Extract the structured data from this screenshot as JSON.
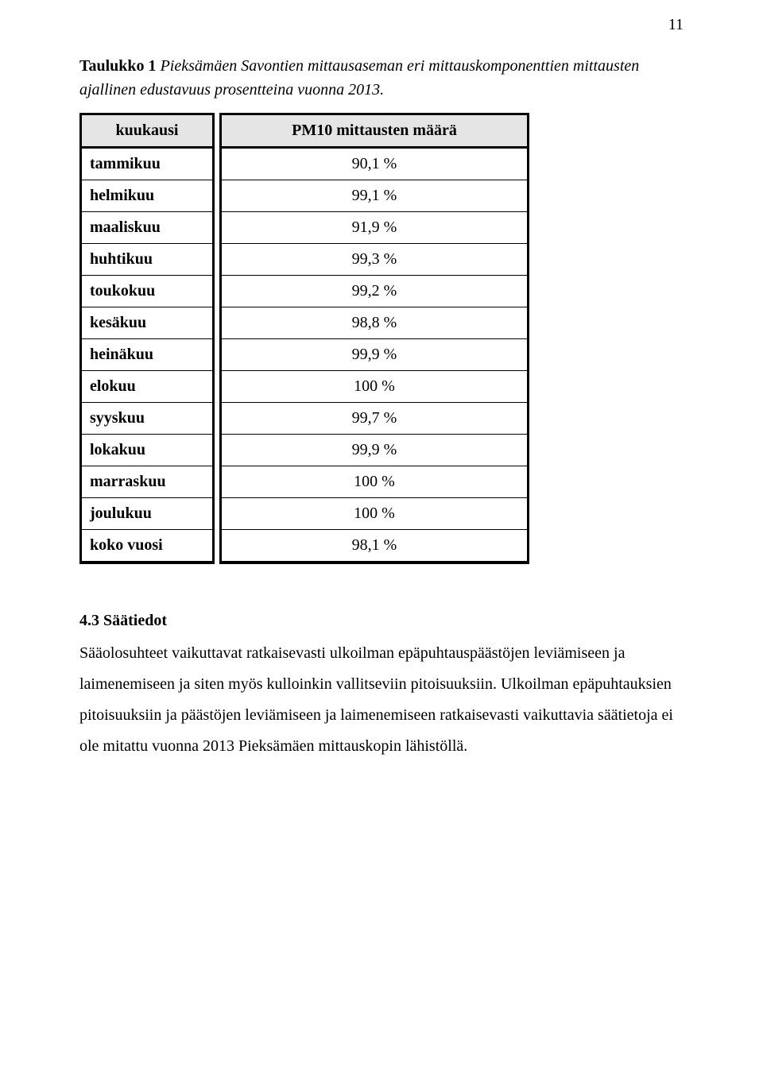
{
  "page_number": "11",
  "caption_bold": "Taulukko 1",
  "caption_italic": " Pieksämäen Savontien mittausaseman eri mittauskomponenttien mittausten ajallinen edustavuus prosentteina vuonna 2013.",
  "table": {
    "header_left": "kuukausi",
    "header_right": "PM10 mittausten määrä",
    "rows": [
      {
        "label": "tammikuu",
        "value": "90,1 %"
      },
      {
        "label": "helmikuu",
        "value": "99,1 %"
      },
      {
        "label": "maaliskuu",
        "value": "91,9 %"
      },
      {
        "label": "huhtikuu",
        "value": "99,3 %"
      },
      {
        "label": "toukokuu",
        "value": "99,2 %"
      },
      {
        "label": "kesäkuu",
        "value": "98,8 %"
      },
      {
        "label": "heinäkuu",
        "value": "99,9 %"
      },
      {
        "label": "elokuu",
        "value": "100 %"
      },
      {
        "label": "syyskuu",
        "value": "99,7 %"
      },
      {
        "label": "lokakuu",
        "value": "99,9 %"
      },
      {
        "label": "marraskuu",
        "value": "100 %"
      },
      {
        "label": "joulukuu",
        "value": "100 %"
      },
      {
        "label": "koko vuosi",
        "value": "98,1 %"
      }
    ]
  },
  "section_title": "4.3 Säätiedot",
  "body_paragraph": "Sääolosuhteet vaikuttavat ratkaisevasti ulkoilman epäpuhtauspäästöjen leviämiseen ja laimenemiseen ja siten myös kulloinkin vallitseviin pitoisuuksiin. Ulkoilman epäpuhtauksien pitoisuuksiin ja päästöjen leviämiseen ja laimenemiseen ratkaisevasti vaikuttavia säätietoja ei ole mitattu vuonna 2013 Pieksämäen mittauskopin lähistöllä."
}
